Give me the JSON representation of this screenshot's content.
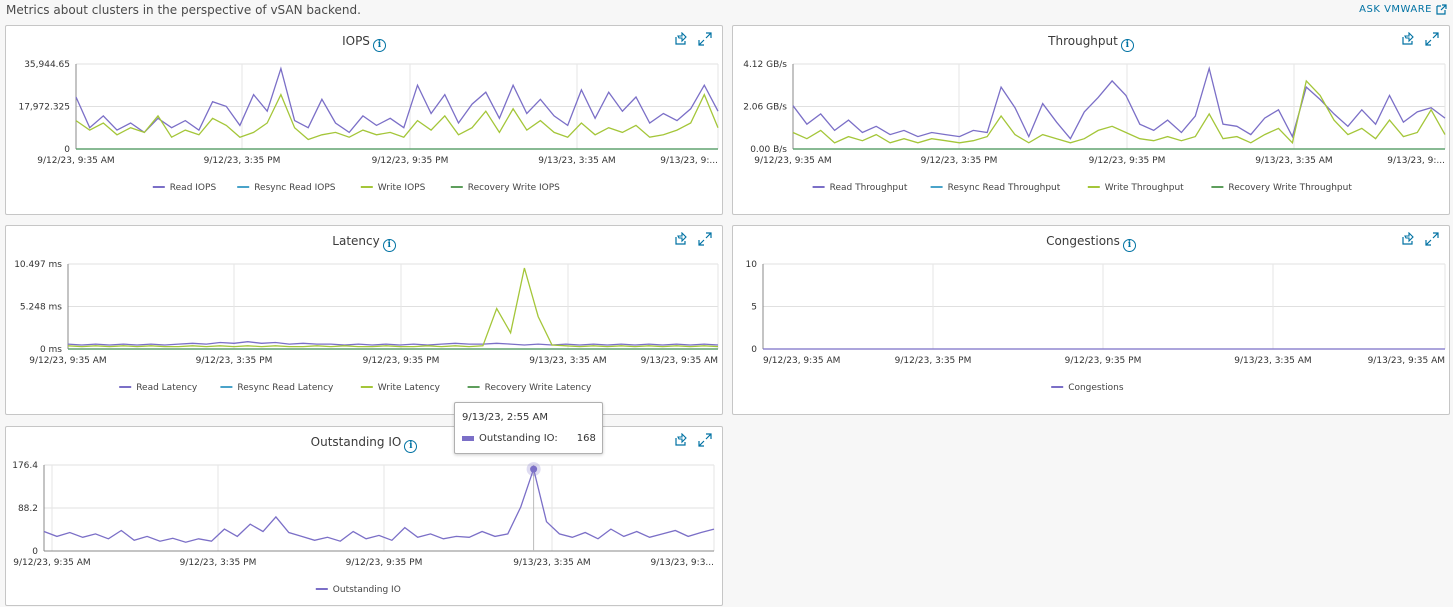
{
  "page": {
    "description": "Metrics about clusters in the perspective of vSAN backend.",
    "ask_link": "ASK VMWARE"
  },
  "tooltip": {
    "date": "9/13/23, 2:55 AM",
    "label": "Outstanding IO:",
    "value": "168"
  },
  "colors": {
    "read": "#7b6fc7",
    "resync_read": "#4aa3c9",
    "write": "#a4c639",
    "recovery_write": "#5e9e5c",
    "link": "#0072a3"
  },
  "chart_data": [
    {
      "id": "iops",
      "type": "line",
      "title": "IOPS",
      "y_ticks": [
        "35,944.65",
        "17,972.325",
        "0"
      ],
      "ylim": [
        0,
        35944.65
      ],
      "x_ticks": [
        "9/12/23, 9:35 AM",
        "9/12/23, 3:35 PM",
        "9/12/23, 9:35 PM",
        "9/13/23, 3:35 AM",
        "9/13/23, 9:..."
      ],
      "series": [
        {
          "name": "Read IOPS",
          "values": [
            22000,
            9000,
            14000,
            8000,
            11000,
            7000,
            13000,
            9000,
            12000,
            8000,
            20000,
            18000,
            10000,
            23000,
            16000,
            34000,
            12000,
            9000,
            21000,
            11000,
            7000,
            14000,
            10000,
            13000,
            9000,
            27000,
            15000,
            23000,
            11000,
            19000,
            24000,
            13000,
            27000,
            15000,
            21000,
            14000,
            10000,
            25000,
            13000,
            24000,
            16000,
            22000,
            11000,
            15000,
            12000,
            17000,
            27000,
            16000
          ]
        },
        {
          "name": "Resync Read IOPS",
          "values": [
            0,
            0,
            0,
            0,
            0,
            0,
            0,
            0,
            0,
            0,
            0,
            0,
            0,
            0,
            0,
            0,
            0,
            0,
            0,
            0,
            0,
            0,
            0,
            0,
            0,
            0,
            0,
            0,
            0,
            0,
            0,
            0,
            0,
            0,
            0,
            0,
            0,
            0,
            0,
            0,
            0,
            0,
            0,
            0,
            0,
            0,
            0,
            0
          ]
        },
        {
          "name": "Write IOPS",
          "values": [
            12000,
            8000,
            11000,
            6000,
            9000,
            7000,
            14000,
            5000,
            8000,
            6000,
            13000,
            10000,
            5000,
            7000,
            11000,
            23000,
            9000,
            4000,
            6000,
            7000,
            5000,
            8000,
            6000,
            7000,
            5000,
            12000,
            8000,
            14000,
            6000,
            9000,
            16000,
            7000,
            17000,
            8000,
            12000,
            7000,
            5000,
            11000,
            6000,
            9000,
            7000,
            10000,
            5000,
            6000,
            8000,
            11000,
            23000,
            9000
          ]
        },
        {
          "name": "Recovery Write IOPS",
          "values": [
            0,
            0,
            0,
            0,
            0,
            0,
            0,
            0,
            0,
            0,
            0,
            0,
            0,
            0,
            0,
            0,
            0,
            0,
            0,
            0,
            0,
            0,
            0,
            0,
            0,
            0,
            0,
            0,
            0,
            0,
            0,
            0,
            0,
            0,
            0,
            0,
            0,
            0,
            0,
            0,
            0,
            0,
            0,
            0,
            0,
            0,
            0,
            0
          ]
        }
      ]
    },
    {
      "id": "throughput",
      "type": "line",
      "title": "Throughput",
      "y_ticks": [
        "4.12 GB/s",
        "2.06 GB/s",
        "0.00 B/s"
      ],
      "ylim": [
        0,
        4.12
      ],
      "x_ticks": [
        "9/12/23, 9:35 AM",
        "9/12/23, 3:35 PM",
        "9/12/23, 9:35 PM",
        "9/13/23, 3:35 AM",
        "9/13/23, 9:..."
      ],
      "series": [
        {
          "name": "Read Throughput",
          "values": [
            2.1,
            1.2,
            1.7,
            0.9,
            1.4,
            0.8,
            1.1,
            0.7,
            0.9,
            0.6,
            0.8,
            0.7,
            0.6,
            0.9,
            0.8,
            3.0,
            2.0,
            0.6,
            2.2,
            1.3,
            0.5,
            1.8,
            2.5,
            3.3,
            2.6,
            1.2,
            0.9,
            1.4,
            0.8,
            1.6,
            3.9,
            1.2,
            1.1,
            0.7,
            1.5,
            1.9,
            0.6,
            3.0,
            2.4,
            1.7,
            1.1,
            1.9,
            1.2,
            2.6,
            1.3,
            1.8,
            2.0,
            1.5
          ]
        },
        {
          "name": "Resync Read Throughput",
          "values": [
            0,
            0,
            0,
            0,
            0,
            0,
            0,
            0,
            0,
            0,
            0,
            0,
            0,
            0,
            0,
            0,
            0,
            0,
            0,
            0,
            0,
            0,
            0,
            0,
            0,
            0,
            0,
            0,
            0,
            0,
            0,
            0,
            0,
            0,
            0,
            0,
            0,
            0,
            0,
            0,
            0,
            0,
            0,
            0,
            0,
            0,
            0,
            0
          ]
        },
        {
          "name": "Write Throughput",
          "values": [
            0.8,
            0.5,
            0.9,
            0.3,
            0.6,
            0.4,
            0.7,
            0.3,
            0.5,
            0.3,
            0.5,
            0.4,
            0.3,
            0.4,
            0.6,
            1.6,
            0.7,
            0.3,
            0.7,
            0.5,
            0.3,
            0.5,
            0.9,
            1.1,
            0.8,
            0.5,
            0.4,
            0.6,
            0.4,
            0.6,
            1.7,
            0.5,
            0.6,
            0.3,
            0.7,
            1.0,
            0.3,
            3.3,
            2.6,
            1.4,
            0.7,
            1.0,
            0.5,
            1.4,
            0.6,
            0.8,
            1.9,
            0.7
          ]
        },
        {
          "name": "Recovery Write Throughput",
          "values": [
            0,
            0,
            0,
            0,
            0,
            0,
            0,
            0,
            0,
            0,
            0,
            0,
            0,
            0,
            0,
            0,
            0,
            0,
            0,
            0,
            0,
            0,
            0,
            0,
            0,
            0,
            0,
            0,
            0,
            0,
            0,
            0,
            0,
            0,
            0,
            0,
            0,
            0,
            0,
            0,
            0,
            0,
            0,
            0,
            0,
            0,
            0,
            0
          ]
        }
      ]
    },
    {
      "id": "latency",
      "type": "line",
      "title": "Latency",
      "y_ticks": [
        "10.497 ms",
        "5.248 ms",
        "0 ms"
      ],
      "ylim": [
        0,
        10.497
      ],
      "x_ticks": [
        "9/12/23, 9:35 AM",
        "9/12/23, 3:35 PM",
        "9/12/23, 9:35 PM",
        "9/13/23, 3:35 AM",
        "9/13/23, 9:35 AM"
      ],
      "series": [
        {
          "name": "Read Latency",
          "values": [
            0.6,
            0.5,
            0.6,
            0.5,
            0.6,
            0.5,
            0.6,
            0.5,
            0.6,
            0.7,
            0.6,
            0.8,
            0.7,
            0.9,
            0.7,
            0.8,
            0.6,
            0.7,
            0.6,
            0.6,
            0.5,
            0.6,
            0.5,
            0.6,
            0.5,
            0.6,
            0.5,
            0.6,
            0.7,
            0.6,
            0.6,
            0.7,
            0.6,
            0.5,
            0.6,
            0.5,
            0.6,
            0.5,
            0.6,
            0.5,
            0.6,
            0.5,
            0.6,
            0.5,
            0.6,
            0.5,
            0.6,
            0.5
          ]
        },
        {
          "name": "Resync Read Latency",
          "values": [
            0,
            0,
            0,
            0,
            0,
            0,
            0,
            0,
            0,
            0,
            0,
            0,
            0,
            0,
            0,
            0,
            0,
            0,
            0,
            0,
            0,
            0,
            0,
            0,
            0,
            0,
            0,
            0,
            0,
            0,
            0,
            0,
            0,
            0,
            0,
            0,
            0,
            0,
            0,
            0,
            0,
            0,
            0,
            0,
            0,
            0,
            0,
            0
          ]
        },
        {
          "name": "Write Latency",
          "values": [
            0.4,
            0.3,
            0.4,
            0.3,
            0.4,
            0.3,
            0.4,
            0.3,
            0.3,
            0.4,
            0.3,
            0.4,
            0.3,
            0.4,
            0.3,
            0.4,
            0.3,
            0.3,
            0.4,
            0.3,
            0.4,
            0.3,
            0.3,
            0.4,
            0.3,
            0.3,
            0.4,
            0.3,
            0.4,
            0.3,
            0.4,
            5.0,
            2.0,
            10.0,
            4.0,
            0.5,
            0.4,
            0.3,
            0.4,
            0.3,
            0.4,
            0.3,
            0.4,
            0.3,
            0.4,
            0.3,
            0.4,
            0.3
          ]
        },
        {
          "name": "Recovery Write Latency",
          "values": [
            0,
            0,
            0,
            0,
            0,
            0,
            0,
            0,
            0,
            0,
            0,
            0,
            0,
            0,
            0,
            0,
            0,
            0,
            0,
            0,
            0,
            0,
            0,
            0,
            0,
            0,
            0,
            0,
            0,
            0,
            0,
            0,
            0,
            0,
            0,
            0,
            0,
            0,
            0,
            0,
            0,
            0,
            0,
            0,
            0,
            0,
            0,
            0
          ]
        }
      ]
    },
    {
      "id": "congestions",
      "type": "line",
      "title": "Congestions",
      "y_ticks": [
        "10",
        "5",
        "0"
      ],
      "ylim": [
        0,
        10
      ],
      "x_ticks": [
        "9/12/23, 9:35 AM",
        "9/12/23, 3:35 PM",
        "9/12/23, 9:35 PM",
        "9/13/23, 3:35 AM",
        "9/13/23, 9:35 AM"
      ],
      "series": [
        {
          "name": "Congestions",
          "values": [
            0,
            0,
            0,
            0,
            0,
            0,
            0,
            0,
            0,
            0,
            0,
            0,
            0,
            0,
            0,
            0,
            0,
            0,
            0,
            0,
            0,
            0,
            0,
            0,
            0,
            0,
            0,
            0,
            0,
            0,
            0,
            0,
            0,
            0,
            0,
            0,
            0,
            0,
            0,
            0,
            0,
            0,
            0,
            0,
            0,
            0,
            0,
            0
          ]
        }
      ]
    },
    {
      "id": "outstanding",
      "type": "line",
      "title": "Outstanding IO",
      "y_ticks": [
        "176.4",
        "88.2",
        "0"
      ],
      "ylim": [
        0,
        176.4
      ],
      "x_ticks": [
        "9/12/23, 9:35 AM",
        "9/12/23, 3:35 PM",
        "9/12/23, 9:35 PM",
        "9/13/23, 3:35 AM",
        "9/13/23, 9:3..."
      ],
      "series": [
        {
          "name": "Outstanding IO",
          "values": [
            40,
            30,
            38,
            28,
            35,
            25,
            42,
            22,
            30,
            20,
            26,
            18,
            25,
            20,
            45,
            30,
            55,
            40,
            70,
            38,
            30,
            22,
            28,
            20,
            40,
            25,
            32,
            22,
            48,
            28,
            35,
            25,
            30,
            28,
            40,
            30,
            35,
            90,
            168,
            60,
            35,
            28,
            38,
            25,
            45,
            30,
            40,
            28,
            35,
            42,
            30,
            38,
            45
          ]
        }
      ]
    }
  ]
}
